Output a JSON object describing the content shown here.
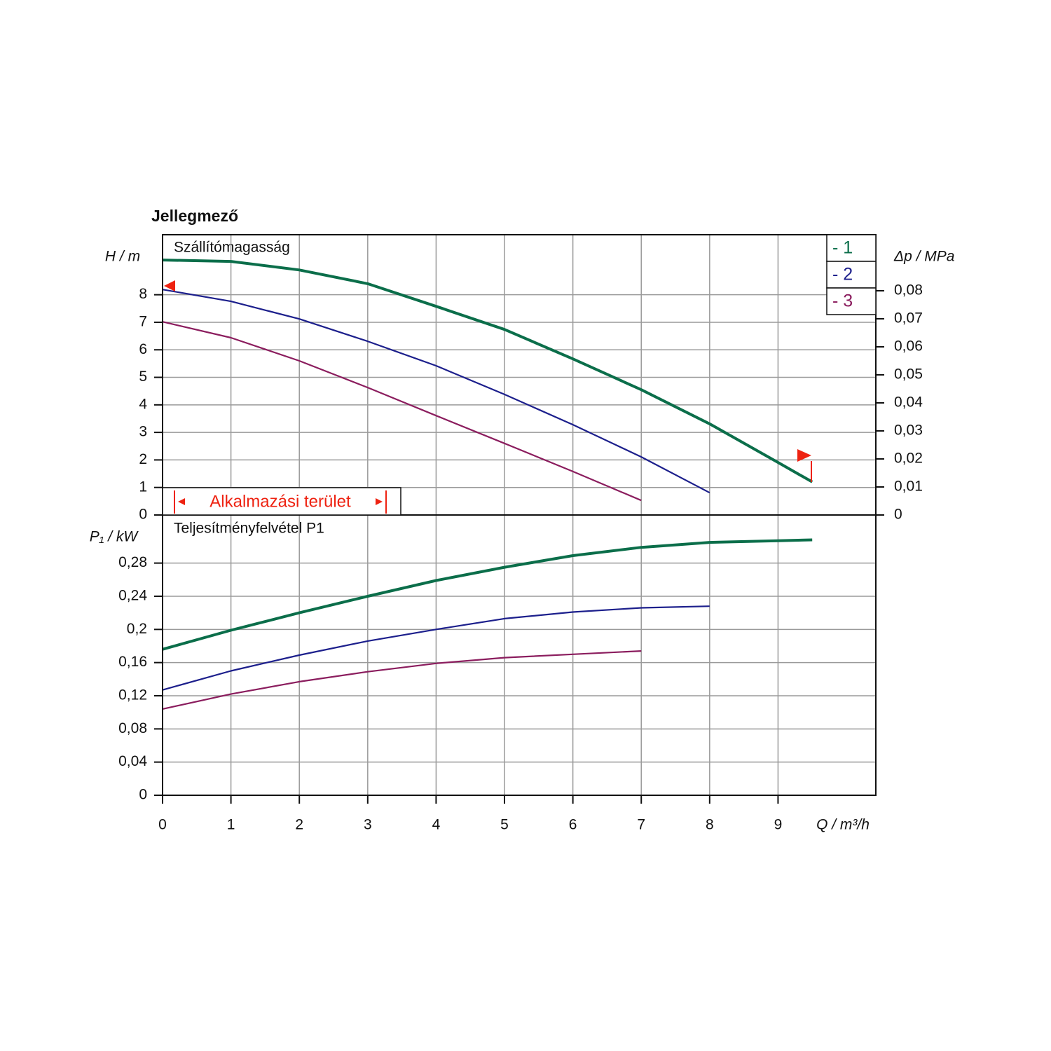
{
  "chart_data": [
    {
      "type": "line",
      "title": "Jellegmező",
      "subtitle": "Szállítómagasság",
      "y_label": "H / m",
      "y2_label": "Δp / MPa",
      "x": [
        0,
        1,
        2,
        3,
        4,
        5,
        6,
        7,
        8,
        9,
        9.5
      ],
      "series": [
        {
          "name": "- 1",
          "color": "#0b6e4a",
          "values": [
            9.26,
            9.21,
            8.9,
            8.4,
            7.58,
            6.74,
            5.67,
            4.55,
            3.31,
            1.91,
            1.2
          ]
        },
        {
          "name": "- 2",
          "color": "#1c1f8c",
          "values": [
            8.19,
            7.76,
            7.12,
            6.31,
            5.42,
            4.38,
            3.28,
            2.11,
            0.81,
            null,
            null
          ]
        },
        {
          "name": "- 3",
          "color": "#8b1d5e",
          "values": [
            7.02,
            6.44,
            5.6,
            4.63,
            3.61,
            2.6,
            1.58,
            0.53,
            null,
            null,
            null
          ]
        }
      ],
      "xlim": [
        0,
        10.43
      ],
      "ylim": [
        0,
        10.18
      ],
      "yticks": [
        0,
        1,
        2,
        3,
        4,
        5,
        6,
        7,
        8
      ],
      "y2lim": [
        0,
        0.1
      ],
      "y2ticks": [
        0,
        {
          "value": 0.01,
          "label": "0,01"
        },
        {
          "value": 0.02,
          "label": "0,02"
        },
        {
          "value": 0.03,
          "label": "0,03"
        },
        {
          "value": 0.04,
          "label": "0,04"
        },
        {
          "value": 0.05,
          "label": "0,05"
        },
        {
          "value": 0.06,
          "label": "0,06"
        },
        {
          "value": 0.07,
          "label": "0,07"
        },
        {
          "value": 0.08,
          "label": "0,08"
        }
      ],
      "annotation": "Alkalmazási terület",
      "grid": true
    },
    {
      "type": "line",
      "subtitle": "Teljesítményfelvétel P1",
      "y_label": "P₁ / kW",
      "x_label": "Q / m³/h",
      "x": [
        0,
        1,
        2,
        3,
        4,
        5,
        6,
        7,
        8,
        9,
        9.5
      ],
      "series": [
        {
          "name": "- 1",
          "color": "#0b6e4a",
          "values": [
            0.176,
            0.199,
            0.22,
            0.24,
            0.259,
            0.275,
            0.289,
            0.299,
            0.305,
            0.307,
            0.308
          ]
        },
        {
          "name": "- 2",
          "color": "#1c1f8c",
          "values": [
            0.127,
            0.15,
            0.169,
            0.186,
            0.2,
            0.213,
            0.221,
            0.226,
            0.228,
            null,
            null
          ]
        },
        {
          "name": "- 3",
          "color": "#8b1d5e",
          "values": [
            0.104,
            0.122,
            0.137,
            0.149,
            0.159,
            0.166,
            0.17,
            0.174,
            null,
            null,
            null
          ]
        }
      ],
      "xlim": [
        0,
        10.43
      ],
      "xticks": [
        0,
        1,
        2,
        3,
        4,
        5,
        6,
        7,
        8,
        9
      ],
      "ylim": [
        0,
        0.338
      ],
      "yticks": [
        0,
        {
          "value": 0.04,
          "label": "0,04"
        },
        {
          "value": 0.08,
          "label": "0,08"
        },
        {
          "value": 0.12,
          "label": "0,12"
        },
        {
          "value": 0.16,
          "label": "0,16"
        },
        {
          "value": 0.2,
          "label": "0,2"
        },
        {
          "value": 0.24,
          "label": "0,24"
        },
        {
          "value": 0.28,
          "label": "0,28"
        }
      ],
      "grid": true
    }
  ]
}
